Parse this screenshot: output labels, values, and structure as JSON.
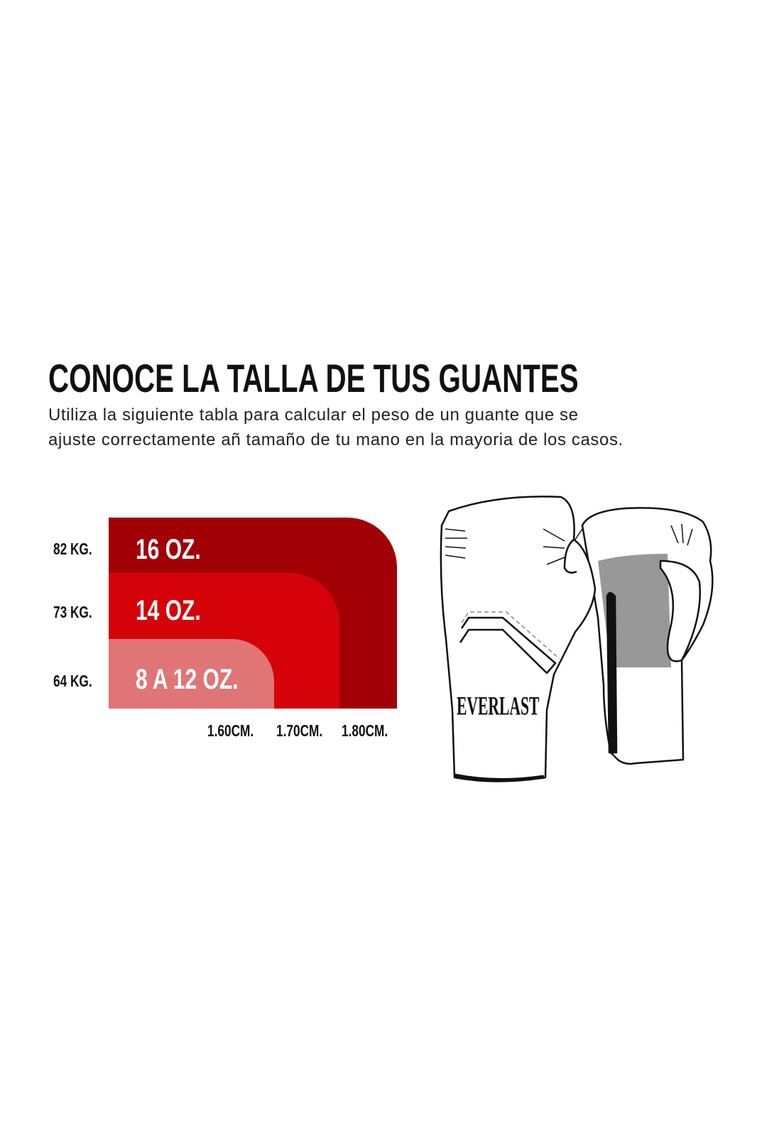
{
  "header": {
    "title": "CONOCE LA TALLA DE TUS GUANTES",
    "subtitle_line1": "Utiliza la siguiente tabla para calcular el peso de un guante que se",
    "subtitle_line2": "ajuste correctamente añ tamaño de tu mano en la mayoria de los casos."
  },
  "chart_data": {
    "type": "area",
    "title": "",
    "y_tick_labels": [
      "82 KG.",
      "73 KG.",
      "64 KG."
    ],
    "x_tick_labels": [
      "1.60CM.",
      "1.70CM.",
      "1.80CM."
    ],
    "series": [
      {
        "name": "16 OZ.",
        "max_weight": "82 KG.",
        "max_height": "1.80CM.",
        "color": "#a10006"
      },
      {
        "name": "14 OZ.",
        "max_weight": "73 KG.",
        "max_height": "1.70CM.",
        "color": "#d50209"
      },
      {
        "name": "8 A 12 OZ.",
        "max_weight": "64 KG.",
        "max_height": "1.60CM.",
        "color": "#e07575"
      }
    ],
    "grid": false
  },
  "illustration": {
    "brand_logo_text": "EVERLAST"
  }
}
